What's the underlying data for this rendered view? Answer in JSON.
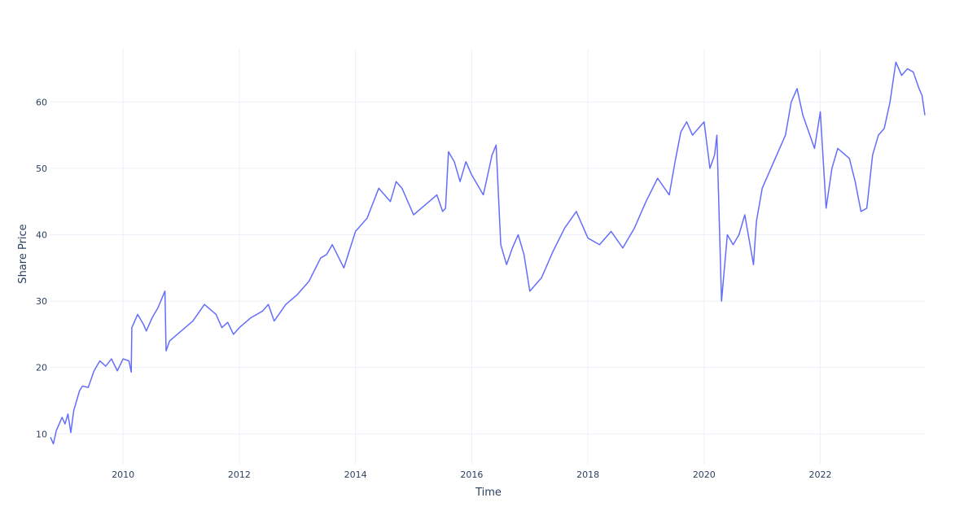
{
  "chart_data": {
    "type": "line",
    "title": "",
    "xlabel": "Time",
    "ylabel": "Share Price",
    "x_tick_labels": [
      "2010",
      "2012",
      "2014",
      "2016",
      "2018",
      "2020",
      "2022"
    ],
    "x_tick_values": [
      2010,
      2012,
      2014,
      2016,
      2018,
      2020,
      2022
    ],
    "y_tick_labels": [
      "10",
      "20",
      "30",
      "40",
      "50",
      "60"
    ],
    "y_tick_values": [
      10,
      20,
      30,
      40,
      50,
      60
    ],
    "xlim": [
      2008.75,
      2023.8
    ],
    "ylim": [
      5.5,
      68
    ],
    "grid": true,
    "legend": "none",
    "colors": {
      "line": "#636efa",
      "grid": "#ebf0f8",
      "text": "#2a3f5f",
      "background": "#ffffff"
    },
    "series": [
      {
        "x": [
          2008.75,
          2008.8,
          2008.85,
          2008.9,
          2008.95,
          2009.0,
          2009.05,
          2009.1,
          2009.15,
          2009.2,
          2009.25,
          2009.3,
          2009.4,
          2009.5,
          2009.6,
          2009.7,
          2009.8,
          2009.9,
          2010.0,
          2010.1,
          2010.14,
          2010.15,
          2010.25,
          2010.35,
          2010.4,
          2010.5,
          2010.6,
          2010.72,
          2010.74,
          2010.8,
          2011.0,
          2011.2,
          2011.4,
          2011.6,
          2011.7,
          2011.8,
          2011.9,
          2012.0,
          2012.2,
          2012.4,
          2012.5,
          2012.6,
          2012.8,
          2013.0,
          2013.2,
          2013.4,
          2013.5,
          2013.6,
          2013.8,
          2014.0,
          2014.2,
          2014.4,
          2014.6,
          2014.7,
          2014.8,
          2015.0,
          2015.2,
          2015.4,
          2015.5,
          2015.55,
          2015.6,
          2015.7,
          2015.8,
          2015.9,
          2016.0,
          2016.2,
          2016.35,
          2016.42,
          2016.5,
          2016.6,
          2016.7,
          2016.8,
          2016.9,
          2017.0,
          2017.2,
          2017.4,
          2017.6,
          2017.8,
          2018.0,
          2018.2,
          2018.4,
          2018.6,
          2018.8,
          2019.0,
          2019.2,
          2019.4,
          2019.5,
          2019.6,
          2019.7,
          2019.8,
          2020.0,
          2020.1,
          2020.18,
          2020.22,
          2020.3,
          2020.4,
          2020.5,
          2020.6,
          2020.7,
          2020.8,
          2020.85,
          2020.9,
          2021.0,
          2021.2,
          2021.4,
          2021.5,
          2021.6,
          2021.7,
          2021.8,
          2021.9,
          2022.0,
          2022.1,
          2022.2,
          2022.3,
          2022.5,
          2022.6,
          2022.7,
          2022.8,
          2022.9,
          2023.0,
          2023.1,
          2023.2,
          2023.3,
          2023.4,
          2023.5,
          2023.6,
          2023.7,
          2023.75,
          2023.8
        ],
        "y": [
          9.5,
          8.5,
          10.5,
          11.5,
          12.5,
          11.5,
          13.0,
          10.2,
          13.5,
          15.0,
          16.5,
          17.2,
          17.0,
          19.5,
          21.0,
          20.2,
          21.3,
          19.5,
          21.3,
          21.0,
          19.3,
          26.0,
          28.0,
          26.5,
          25.5,
          27.5,
          29.0,
          31.5,
          22.5,
          24.0,
          25.5,
          27.0,
          29.5,
          28.0,
          26.0,
          26.8,
          25.0,
          26.0,
          27.5,
          28.5,
          29.5,
          27.0,
          29.5,
          31.0,
          33.0,
          36.5,
          37.0,
          38.5,
          35.0,
          40.5,
          42.5,
          47.0,
          45.0,
          48.0,
          47.0,
          43.0,
          44.5,
          46.0,
          43.5,
          44.0,
          52.5,
          51.0,
          48.0,
          51.0,
          49.0,
          46.0,
          52.0,
          53.5,
          38.5,
          35.5,
          38.0,
          40.0,
          37.0,
          31.5,
          33.5,
          37.5,
          41.0,
          43.5,
          39.5,
          38.5,
          40.5,
          38.0,
          41.0,
          45.0,
          48.5,
          46.0,
          51.0,
          55.5,
          57.0,
          55.0,
          57.0,
          50.0,
          52.0,
          55.0,
          30.0,
          40.0,
          38.5,
          40.0,
          43.0,
          38.0,
          35.5,
          42.0,
          47.0,
          51.0,
          55.0,
          60.0,
          62.0,
          58.0,
          55.5,
          53.0,
          58.5,
          44.0,
          50.0,
          53.0,
          51.5,
          48.0,
          43.5,
          44.0,
          52.0,
          55.0,
          56.0,
          60.0,
          66.0,
          64.0,
          65.0,
          64.5,
          62.0,
          61.0,
          58.0
        ]
      }
    ]
  }
}
